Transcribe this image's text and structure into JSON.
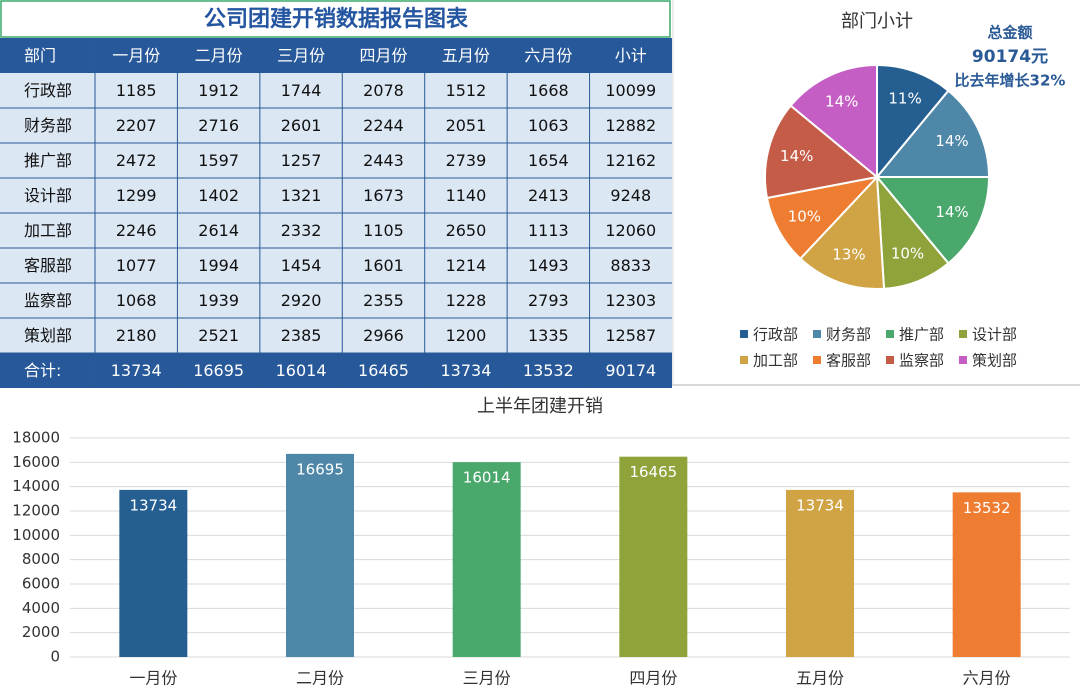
{
  "title": "公司团建开销数据报告图表",
  "table": {
    "header": [
      "部门",
      "一月份",
      "二月份",
      "三月份",
      "四月份",
      "五月份",
      "六月份",
      "小计"
    ],
    "rows": [
      [
        "行政部",
        1185,
        1912,
        1744,
        2078,
        1512,
        1668,
        10099
      ],
      [
        "财务部",
        2207,
        2716,
        2601,
        2244,
        2051,
        1063,
        12882
      ],
      [
        "推广部",
        2472,
        1597,
        1257,
        2443,
        2739,
        1654,
        12162
      ],
      [
        "设计部",
        1299,
        1402,
        1321,
        1673,
        1140,
        2413,
        9248
      ],
      [
        "加工部",
        2246,
        2614,
        2332,
        1105,
        2650,
        1113,
        12060
      ],
      [
        "客服部",
        1077,
        1994,
        1454,
        1601,
        1214,
        1493,
        8833
      ],
      [
        "监察部",
        1068,
        1939,
        2920,
        2355,
        1228,
        2793,
        12303
      ],
      [
        "策划部",
        2180,
        2521,
        2385,
        2966,
        1200,
        1335,
        12587
      ]
    ],
    "footer": [
      "合计:",
      13734,
      16695,
      16014,
      16465,
      13734,
      13532,
      90174
    ]
  },
  "chart_data": [
    {
      "type": "pie",
      "title": "部门小计",
      "categories": [
        "行政部",
        "财务部",
        "推广部",
        "设计部",
        "加工部",
        "客服部",
        "监察部",
        "策划部"
      ],
      "values": [
        11,
        14,
        14,
        10,
        13,
        10,
        14,
        14
      ],
      "value_labels": [
        "11%",
        "14%",
        "14%",
        "10%",
        "13%",
        "10%",
        "14%",
        "14%"
      ],
      "colors": [
        "#255e91",
        "#4e87a8",
        "#4aa86c",
        "#8ea33a",
        "#d0a445",
        "#ef7d31",
        "#c45c47",
        "#c45ec4"
      ],
      "annotations": [
        "总金额",
        "90174元",
        "比去年增长32%"
      ],
      "legend": "bottom"
    },
    {
      "type": "bar",
      "title": "上半年团建开销",
      "categories": [
        "一月份",
        "二月份",
        "三月份",
        "四月份",
        "五月份",
        "六月份"
      ],
      "values": [
        13734,
        16695,
        16014,
        16465,
        13734,
        13532
      ],
      "colors": [
        "#255e91",
        "#4e87a8",
        "#4aa86c",
        "#8ea33a",
        "#d0a445",
        "#ef7d31"
      ],
      "ylim": [
        0,
        18000
      ],
      "yticks": [
        0,
        2000,
        4000,
        6000,
        8000,
        10000,
        12000,
        14000,
        16000,
        18000
      ],
      "grid": true
    }
  ]
}
